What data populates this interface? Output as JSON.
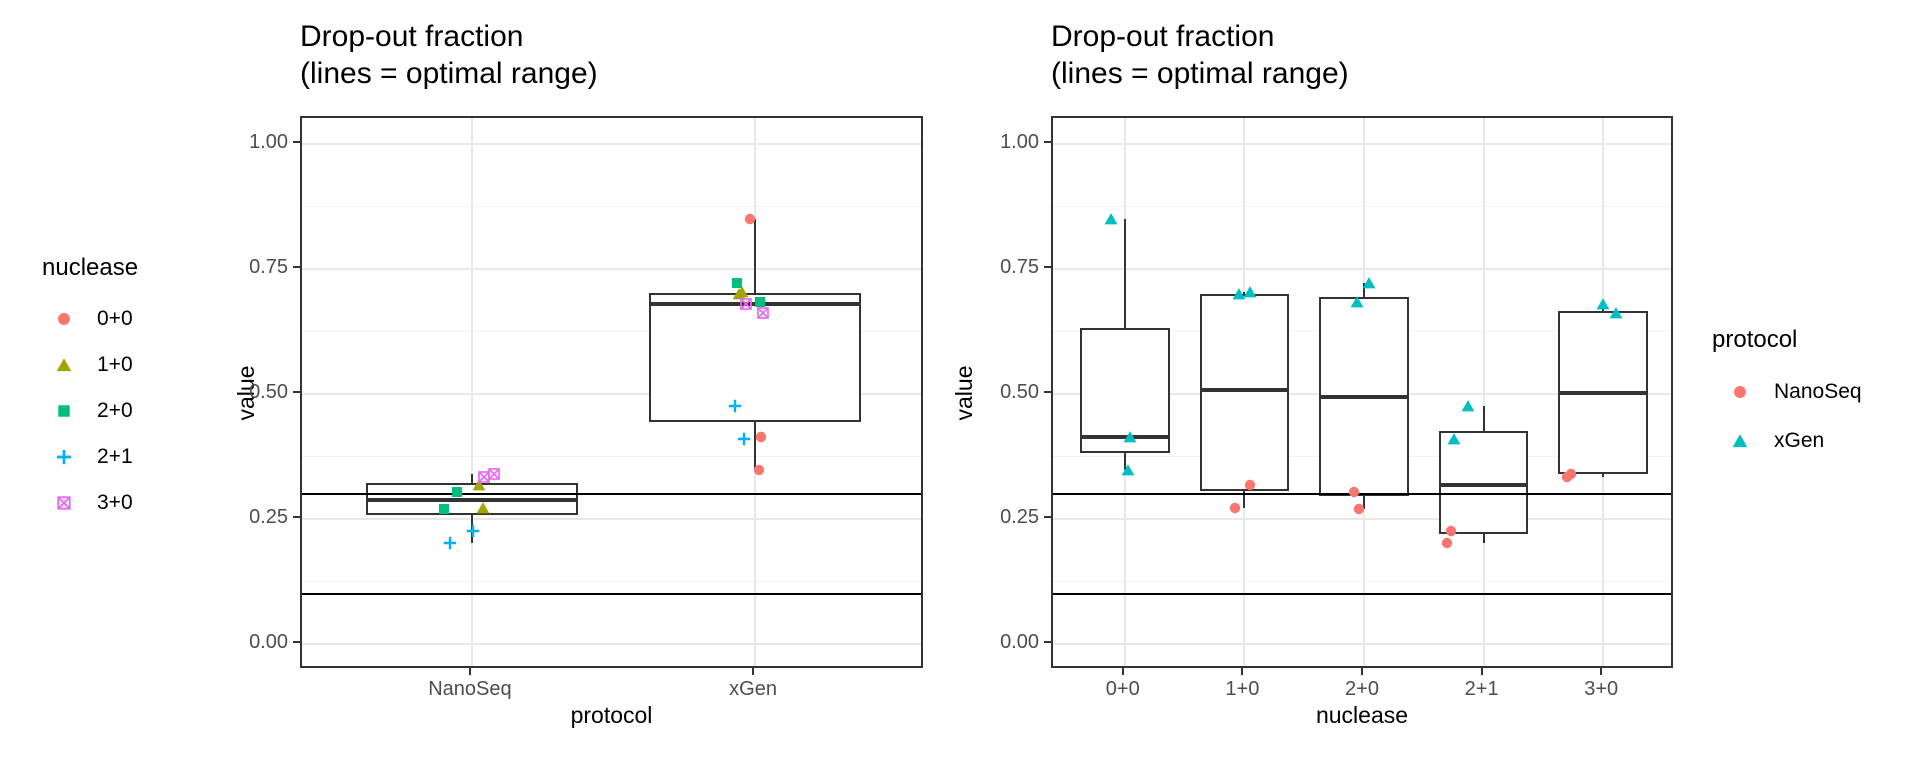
{
  "figure": {
    "background": "#ffffff",
    "optimal_range": [
      0.1,
      0.3
    ]
  },
  "chart_data": [
    {
      "type": "boxplot",
      "title_line1": "Drop-out fraction",
      "title_line2": "(lines = optimal range)",
      "xlabel": "protocol",
      "ylabel": "value",
      "ylim": [
        0,
        1
      ],
      "grid": true,
      "yticks": [
        {
          "value": 1.0,
          "label": "1.00"
        },
        {
          "value": 0.75,
          "label": "0.75"
        },
        {
          "value": 0.5,
          "label": "0.50"
        },
        {
          "value": 0.25,
          "label": "0.25"
        },
        {
          "value": 0.0,
          "label": "0.00"
        }
      ],
      "minor_gridlines": [
        0.125,
        0.375,
        0.625,
        0.875
      ],
      "ref_lines": [
        0.1,
        0.3
      ],
      "ref_line_color": "#000000",
      "categories": [
        "NanoSeq",
        "xGen"
      ],
      "legend": {
        "title": "nuclease",
        "position": "left",
        "entries": [
          {
            "label": "0+0",
            "shape": "circle",
            "color": "#F8766D"
          },
          {
            "label": "1+0",
            "shape": "triangle",
            "color": "#A3A500"
          },
          {
            "label": "2+0",
            "shape": "square",
            "color": "#00BF7D"
          },
          {
            "label": "2+1",
            "shape": "plus",
            "color": "#00B0F6"
          },
          {
            "label": "3+0",
            "shape": "square-x",
            "color": "#E76BF3"
          }
        ]
      },
      "boxes": [
        {
          "category": "NanoSeq",
          "lower_whisker": 0.202,
          "q1": 0.259,
          "median": 0.288,
          "q3": 0.322,
          "upper_whisker": 0.341
        },
        {
          "category": "xGen",
          "lower_whisker": 0.349,
          "q1": 0.445,
          "median": 0.68,
          "q3": 0.703,
          "upper_whisker": 0.85
        }
      ],
      "points": [
        {
          "category": "NanoSeq",
          "series": "1+0",
          "value": 0.318,
          "jitter": 0.025
        },
        {
          "category": "NanoSeq",
          "series": "1+0",
          "value": 0.272,
          "jitter": 0.039
        },
        {
          "category": "NanoSeq",
          "series": "2+0",
          "value": 0.304,
          "jitter": -0.053
        },
        {
          "category": "NanoSeq",
          "series": "2+0",
          "value": 0.27,
          "jitter": -0.099
        },
        {
          "category": "NanoSeq",
          "series": "2+1",
          "value": 0.226,
          "jitter": 0.004
        },
        {
          "category": "NanoSeq",
          "series": "2+1",
          "value": 0.202,
          "jitter": -0.078
        },
        {
          "category": "NanoSeq",
          "series": "3+0",
          "value": 0.335,
          "jitter": 0.042
        },
        {
          "category": "NanoSeq",
          "series": "3+0",
          "value": 0.341,
          "jitter": 0.078
        },
        {
          "category": "xGen",
          "series": "0+0",
          "value": 0.85,
          "jitter": -0.018
        },
        {
          "category": "xGen",
          "series": "0+0",
          "value": 0.414,
          "jitter": 0.021
        },
        {
          "category": "xGen",
          "series": "0+0",
          "value": 0.349,
          "jitter": 0.014
        },
        {
          "category": "xGen",
          "series": "1+0",
          "value": 0.7,
          "jitter": -0.057
        },
        {
          "category": "xGen",
          "series": "1+0",
          "value": 0.705,
          "jitter": -0.045
        },
        {
          "category": "xGen",
          "series": "2+0",
          "value": 0.722,
          "jitter": -0.064
        },
        {
          "category": "xGen",
          "series": "2+0",
          "value": 0.684,
          "jitter": 0.018
        },
        {
          "category": "xGen",
          "series": "2+1",
          "value": 0.476,
          "jitter": -0.071
        },
        {
          "category": "xGen",
          "series": "2+1",
          "value": 0.41,
          "jitter": -0.039
        },
        {
          "category": "xGen",
          "series": "3+0",
          "value": 0.68,
          "jitter": -0.032
        },
        {
          "category": "xGen",
          "series": "3+0",
          "value": 0.662,
          "jitter": 0.028
        }
      ]
    },
    {
      "type": "boxplot",
      "title_line1": "Drop-out fraction",
      "title_line2": "(lines = optimal range)",
      "xlabel": "nuclease",
      "ylabel": "value",
      "ylim": [
        0,
        1
      ],
      "grid": true,
      "yticks": [
        {
          "value": 1.0,
          "label": "1.00"
        },
        {
          "value": 0.75,
          "label": "0.75"
        },
        {
          "value": 0.5,
          "label": "0.50"
        },
        {
          "value": 0.25,
          "label": "0.25"
        },
        {
          "value": 0.0,
          "label": "0.00"
        }
      ],
      "minor_gridlines": [
        0.125,
        0.375,
        0.625,
        0.875
      ],
      "ref_lines": [
        0.1,
        0.3
      ],
      "ref_line_color": "#000000",
      "categories": [
        "0+0",
        "1+0",
        "2+0",
        "2+1",
        "3+0"
      ],
      "legend": {
        "title": "protocol",
        "position": "right",
        "entries": [
          {
            "label": "NanoSeq",
            "shape": "circle",
            "color": "#F8766D"
          },
          {
            "label": "xGen",
            "shape": "triangle",
            "color": "#00BFC4"
          }
        ]
      },
      "boxes": [
        {
          "category": "0+0",
          "lower_whisker": 0.349,
          "q1": 0.382,
          "median": 0.414,
          "q3": 0.632,
          "upper_whisker": 0.85
        },
        {
          "category": "1+0",
          "lower_whisker": 0.272,
          "q1": 0.307,
          "median": 0.509,
          "q3": 0.701,
          "upper_whisker": 0.705
        },
        {
          "category": "2+0",
          "lower_whisker": 0.27,
          "q1": 0.296,
          "median": 0.494,
          "q3": 0.694,
          "upper_whisker": 0.722
        },
        {
          "category": "2+1",
          "lower_whisker": 0.202,
          "q1": 0.22,
          "median": 0.318,
          "q3": 0.427,
          "upper_whisker": 0.476
        },
        {
          "category": "3+0",
          "lower_whisker": 0.335,
          "q1": 0.34,
          "median": 0.502,
          "q3": 0.667,
          "upper_whisker": 0.68
        }
      ],
      "points": [
        {
          "category": "0+0",
          "series": "xGen",
          "value": 0.85,
          "jitter": -0.113
        },
        {
          "category": "0+0",
          "series": "xGen",
          "value": 0.414,
          "jitter": 0.04
        },
        {
          "category": "0+0",
          "series": "xGen",
          "value": 0.349,
          "jitter": 0.03
        },
        {
          "category": "1+0",
          "series": "NanoSeq",
          "value": 0.318,
          "jitter": 0.048
        },
        {
          "category": "1+0",
          "series": "NanoSeq",
          "value": 0.272,
          "jitter": -0.078
        },
        {
          "category": "1+0",
          "series": "xGen",
          "value": 0.7,
          "jitter": -0.046
        },
        {
          "category": "1+0",
          "series": "xGen",
          "value": 0.705,
          "jitter": 0.046
        },
        {
          "category": "2+0",
          "series": "NanoSeq",
          "value": 0.304,
          "jitter": -0.084
        },
        {
          "category": "2+0",
          "series": "NanoSeq",
          "value": 0.27,
          "jitter": -0.044
        },
        {
          "category": "2+0",
          "series": "xGen",
          "value": 0.722,
          "jitter": 0.042
        },
        {
          "category": "2+0",
          "series": "xGen",
          "value": 0.684,
          "jitter": -0.059
        },
        {
          "category": "2+1",
          "series": "NanoSeq",
          "value": 0.226,
          "jitter": -0.27
        },
        {
          "category": "2+1",
          "series": "NanoSeq",
          "value": 0.202,
          "jitter": -0.31
        },
        {
          "category": "2+1",
          "series": "xGen",
          "value": 0.476,
          "jitter": -0.13
        },
        {
          "category": "2+1",
          "series": "xGen",
          "value": 0.41,
          "jitter": -0.25
        },
        {
          "category": "3+0",
          "series": "NanoSeq",
          "value": 0.335,
          "jitter": -0.3
        },
        {
          "category": "3+0",
          "series": "NanoSeq",
          "value": 0.341,
          "jitter": -0.27
        },
        {
          "category": "3+0",
          "series": "xGen",
          "value": 0.68,
          "jitter": 0.0
        },
        {
          "category": "3+0",
          "series": "xGen",
          "value": 0.662,
          "jitter": 0.11
        }
      ]
    }
  ]
}
